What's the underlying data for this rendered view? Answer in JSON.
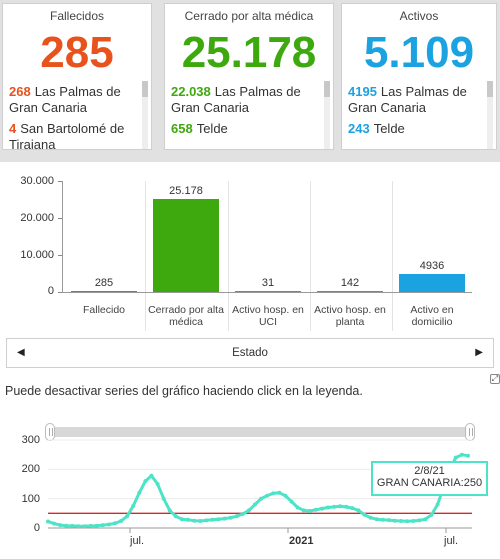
{
  "cards": [
    {
      "title": "Fallecidos",
      "value": "285",
      "color": "#e8521c",
      "items": [
        {
          "num": "268",
          "name": "Las Palmas de Gran Canaria"
        },
        {
          "num": "4",
          "name": "San Bartolomé de Tirajana"
        }
      ]
    },
    {
      "title": "Cerrado por alta médica",
      "value": "25.178",
      "color": "#3ea80f",
      "items": [
        {
          "num": "22.038",
          "name": "Las Palmas de Gran Canaria"
        },
        {
          "num": "658",
          "name": "Telde"
        }
      ]
    },
    {
      "title": "Activos",
      "value": "5.109",
      "color": "#1aa3e0",
      "items": [
        {
          "num": "4195",
          "name": "Las Palmas de Gran Canaria"
        },
        {
          "num": "243",
          "name": "Telde"
        }
      ]
    }
  ],
  "bar_chart": {
    "type": "bar",
    "yticks": [
      "30.000",
      "20.000",
      "10.000",
      "0"
    ],
    "ylim": [
      0,
      30000
    ],
    "xlabel": "Estado",
    "bars": [
      {
        "category": "Fallecido",
        "value": 285,
        "label": "285",
        "color": "#e8521c"
      },
      {
        "category": "Cerrado por alta médica",
        "value": 25178,
        "label": "25.178",
        "color": "#3ea80f"
      },
      {
        "category": "Activo hosp. en UCI",
        "value": 31,
        "label": "31",
        "color": "#1aa3e0"
      },
      {
        "category": "Activo hosp. en planta",
        "value": 142,
        "label": "142",
        "color": "#1aa3e0"
      },
      {
        "category": "Activo en domicilio",
        "value": 4936,
        "label": "4936",
        "color": "#1aa3e0"
      }
    ]
  },
  "hint": "Puede desactivar series del gráfico haciendo click en la leyenda.",
  "line_chart": {
    "type": "line",
    "yticks": [
      "300",
      "200",
      "100",
      "0"
    ],
    "ylim": [
      0,
      300
    ],
    "xticks": [
      "jul.",
      "2021",
      "jul."
    ],
    "threshold": 50,
    "series_color": "#4de3c7",
    "threshold_color": "#d62728",
    "values": [
      22,
      15,
      10,
      8,
      7,
      6,
      6,
      7,
      8,
      10,
      12,
      16,
      24,
      40,
      75,
      120,
      160,
      178,
      150,
      100,
      60,
      40,
      30,
      28,
      25,
      24,
      26,
      28,
      30,
      32,
      35,
      40,
      48,
      60,
      80,
      100,
      110,
      118,
      120,
      110,
      90,
      70,
      60,
      58,
      62,
      66,
      70,
      72,
      74,
      72,
      68,
      60,
      45,
      35,
      30,
      28,
      27,
      25,
      24,
      23,
      24,
      26,
      30,
      45,
      80,
      140,
      200,
      240,
      250,
      246
    ],
    "tooltip": {
      "date": "2/8/21",
      "text": "GRAN CANARIA:250"
    }
  }
}
